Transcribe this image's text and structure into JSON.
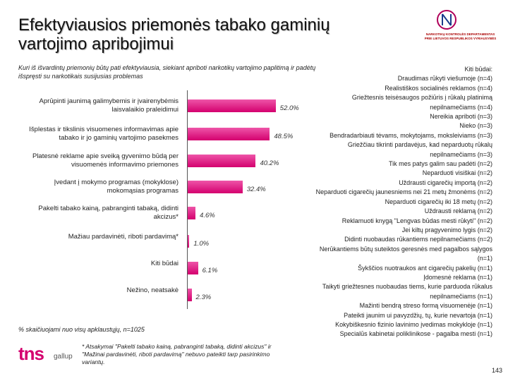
{
  "header": {
    "title": "Efektyviausios priemonės tabako gaminių vartojimo apribojimui",
    "subtitle": "Kuri iš išvardintų priemonių būtų pati efektyviausia, siekiant apriboti narkotikų vartojimo paplitimą ir padėtų išspręsti su narkotikais susijusias problemas",
    "logo_text": "NARKOTIKŲ KONTROLĖS DEPARTAMENTAS PRIE LIETUVOS RESPUBLIKOS VYRIAUSYBĖS"
  },
  "chart_data": {
    "type": "bar",
    "orientation": "horizontal",
    "color": "#d4006e",
    "categories": [
      "Aprūpinti jaunimą galimybemis ir įvairenybėmis laisvalaikio praleidimui",
      "Išplestas ir tikslinis visuomenes informavimas apie tabako ir jo gaminių vartojimo pasekmes",
      "Platesnė reklame apie sveiką gyvenimo būdą per visuomenės informavimo priemones",
      "Įvedant į mokymo programas (mokyklose) mokomąsias programas",
      "Pakelti tabako kainą, pabranginti tabaką, didinti akcizus*",
      "Mažiau pardavinėti, riboti pardavimą*",
      "Kiti būdai",
      "Nežino, neatsakė"
    ],
    "values": [
      52.0,
      48.5,
      40.2,
      32.4,
      4.6,
      1.0,
      6.1,
      2.3
    ],
    "value_labels": [
      "52.0%",
      "48.5%",
      "40.2%",
      "32.4%",
      "4.6%",
      "1.0%",
      "6.1%",
      "2.3%"
    ]
  },
  "other_methods": {
    "title": "Kiti būdai:",
    "items": [
      "Draudimas rūkyti viešumoje (n=4)",
      "Realistiškos socialinės reklamos (n=4)",
      "Griežtesnis teisėsaugos požiūris į rūkalų platinimą nepilnamečiams (n=4)",
      "Nereikia apriboti (n=3)",
      "Nieko (n=3)",
      "Bendradarbiauti tėvams, mokytojams, moksleiviams (n=3)",
      "Griežčiau tikrinti pardavėjus, kad neparduotų rūkalų nepilnamečiams (n=3)",
      "Tik mes patys galim sau padėti (n=2)",
      "Neparduoti visiškai (n=2)",
      "Uždrausti cigarečių importą (n=2)",
      "Neparduoti cigarečių jaunesniems nei 21 metų žmonėms (n=2)",
      "Neparduoti cigarečių iki 18 metų (n=2)",
      "Uždrausti reklamą (n=2)",
      "Reklamuoti knygą \"Lengvas būdas mesti rūkyti\" (n=2)",
      "Jei kiltų pragyvenimo lygis (n=2)",
      "Didinti nuobaudas rūkantiems nepilnamečiams (n=2)",
      "Nerūkantiems būtų suteiktos geresnės med pagalbos sąlygos (n=1)",
      "Šykščios nuotraukos ant cigarečių pakelių (n=1)",
      "Įdomesnė reklama (n=1)",
      "Taikyti griežtesnes nuobaudas tiems, kurie parduoda rūkalus nepilnamečiams (n=1)",
      "Mažinti bendrą streso formą visuomenėje (n=1)",
      "Pateikti jaunim ui pavyzdžių, tų, kurie nevartoja (n=1)",
      "Kokybiškesnio fizinio lavinimo įvedimas mokykloje (n=1)",
      "Specialūs kabinetai poliklinikose - pagalba mesti (n=1)"
    ]
  },
  "footer": {
    "base_note": "% skaičiuojami nuo visų apklaustųjų, n=1025",
    "footnote": "* Atsakymai \"Pakelti tabako kainą, pabranginti tabaką, didinti akcizus\" ir \"Mažinai pardavinėti, riboti pardavimą\" nebuvo pateikti tarp pasirinkimo variantų.",
    "brand": "tns",
    "brand_sub": "gallup",
    "page": "143"
  }
}
